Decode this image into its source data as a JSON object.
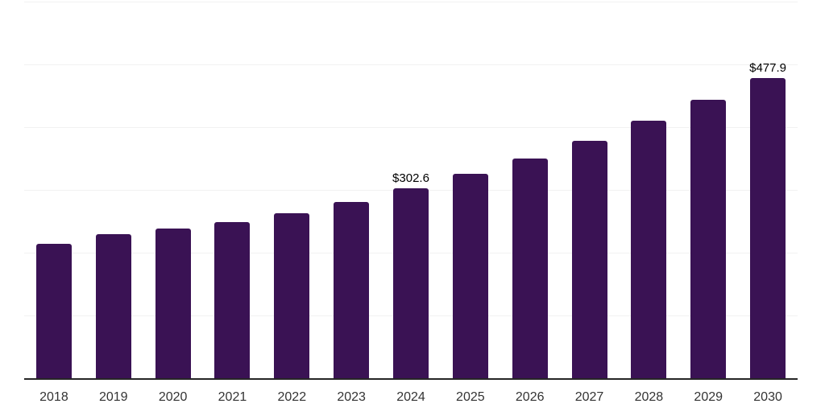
{
  "page": {
    "background_color": "#ffffff"
  },
  "chart_data": {
    "type": "bar",
    "title": "",
    "xlabel": "",
    "ylabel": "",
    "categories": [
      "2018",
      "2019",
      "2020",
      "2021",
      "2022",
      "2023",
      "2024",
      "2025",
      "2026",
      "2027",
      "2028",
      "2029",
      "2030"
    ],
    "values": [
      214,
      229,
      239,
      249,
      263,
      281,
      302.6,
      326,
      350,
      378,
      410,
      443,
      477.9
    ],
    "data_labels": [
      {
        "category": "2024",
        "text": "$302.6"
      },
      {
        "category": "2030",
        "text": "$477.9"
      }
    ],
    "ylim": [
      0,
      600
    ],
    "gridline_values": [
      100,
      200,
      300,
      400,
      500,
      600
    ],
    "grid": true,
    "legend": false,
    "y_axis_ticks_visible": false,
    "colors": {
      "bar": "#3a1254",
      "gridline": "#f2f2f2",
      "axis": "#262626",
      "tick_label": "#333333",
      "data_label": "#000000"
    }
  }
}
